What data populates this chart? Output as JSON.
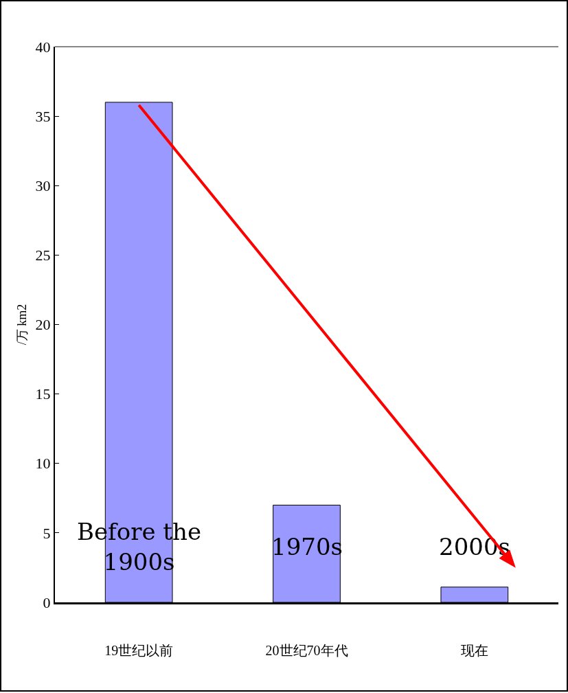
{
  "chart_data": {
    "type": "bar",
    "ylabel": "/万 km2",
    "categories": [
      "19世纪以前",
      "20世纪70年代",
      "现在"
    ],
    "values": [
      36,
      7,
      1.1
    ],
    "color": "#9999ff",
    "ylim": [
      0,
      40
    ],
    "yticks": [
      0,
      5,
      10,
      15,
      20,
      25,
      30,
      35,
      40
    ],
    "grid": false,
    "annotations": [
      "Before the\n1900s",
      "1970s",
      "2000s"
    ]
  }
}
